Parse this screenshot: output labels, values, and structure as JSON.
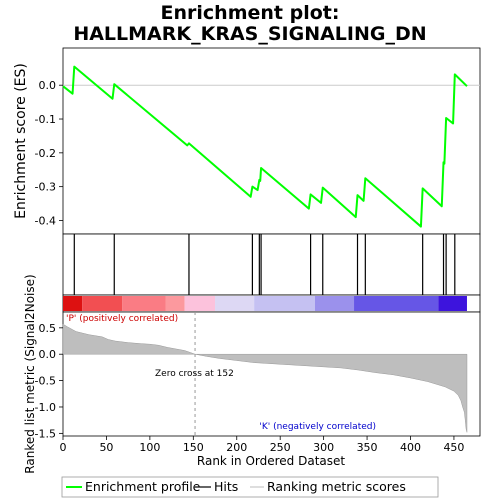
{
  "chart_data": {
    "type": "line",
    "title_line1": "Enrichment plot:",
    "title_line2": "HALLMARK_KRAS_SIGNALING_DN",
    "es_ylabel": "Enrichment score (ES)",
    "metric_ylabel": "Ranked list metric (Signal2Noise)",
    "xlabel": "Rank in Ordered Dataset",
    "pos_label": "'P' (positively correlated)",
    "neg_label": "'K' (negatively correlated)",
    "zero_cross_label": "Zero cross at 152",
    "zero_cross": 152,
    "legend": [
      "Enrichment profile",
      "Hits",
      "Ranking metric scores"
    ],
    "xlim": [
      0,
      480
    ],
    "es_ylim": [
      -0.44,
      0.11
    ],
    "metric_ylim": [
      -1.55,
      0.8
    ],
    "x_ticks": [
      0,
      50,
      100,
      150,
      200,
      250,
      300,
      350,
      400,
      450
    ],
    "es_ticks": [
      0.0,
      -0.1,
      -0.2,
      -0.3,
      -0.4
    ],
    "es_tick_labels": [
      "0.0",
      "-0.1",
      "-0.2",
      "-0.3",
      "-0.4"
    ],
    "metric_ticks": [
      0.5,
      0.0,
      -0.5,
      -1.0,
      -1.5
    ],
    "metric_tick_labels": [
      "0.5",
      "0.0",
      "-0.5",
      "-1.0",
      "-1.5"
    ],
    "n_genes": 465,
    "hits": [
      13,
      59,
      145,
      218,
      226,
      228,
      285,
      299,
      339,
      348,
      414,
      438,
      441,
      451
    ],
    "enrichment_profile": {
      "x": [
        0,
        11,
        13,
        57,
        59,
        143,
        145,
        216,
        218,
        224,
        226,
        227,
        228,
        283,
        285,
        297,
        299,
        337,
        339,
        346,
        348,
        412,
        414,
        436,
        438,
        439,
        441,
        449,
        451,
        465
      ],
      "y": [
        -0.003,
        -0.025,
        0.055,
        -0.04,
        0.003,
        -0.178,
        -0.172,
        -0.33,
        -0.3,
        -0.31,
        -0.28,
        -0.283,
        -0.245,
        -0.365,
        -0.323,
        -0.348,
        -0.303,
        -0.39,
        -0.325,
        -0.342,
        -0.275,
        -0.418,
        -0.305,
        -0.358,
        -0.228,
        -0.232,
        -0.097,
        -0.113,
        0.032,
        -0.003
      ]
    },
    "ranking_metric": {
      "rank": [
        0,
        5,
        15,
        30,
        45,
        52,
        60,
        75,
        90,
        100,
        110,
        120,
        130,
        140,
        147,
        152,
        165,
        180,
        200,
        220,
        240,
        260,
        280,
        300,
        320,
        340,
        360,
        380,
        400,
        420,
        440,
        450,
        455,
        458,
        460,
        462,
        463,
        464,
        465
      ],
      "value": [
        0.57,
        0.52,
        0.43,
        0.37,
        0.33,
        0.28,
        0.25,
        0.22,
        0.2,
        0.19,
        0.17,
        0.13,
        0.1,
        0.07,
        0.03,
        0.0,
        -0.04,
        -0.08,
        -0.12,
        -0.16,
        -0.18,
        -0.2,
        -0.22,
        -0.24,
        -0.26,
        -0.3,
        -0.35,
        -0.39,
        -0.45,
        -0.52,
        -0.62,
        -0.7,
        -0.78,
        -0.88,
        -1.0,
        -1.1,
        -1.25,
        -1.42,
        -1.48
      ]
    },
    "color_bands": [
      {
        "from": 0,
        "to": 22,
        "color": "#dd1111"
      },
      {
        "from": 22,
        "to": 68,
        "color": "#f24f52"
      },
      {
        "from": 68,
        "to": 118,
        "color": "#fa7c84"
      },
      {
        "from": 118,
        "to": 140,
        "color": "#fc999e"
      },
      {
        "from": 140,
        "to": 175,
        "color": "#fcc2dc"
      },
      {
        "from": 175,
        "to": 220,
        "color": "#ddd8f4"
      },
      {
        "from": 220,
        "to": 290,
        "color": "#c5c1f2"
      },
      {
        "from": 290,
        "to": 335,
        "color": "#9b91ec"
      },
      {
        "from": 335,
        "to": 432,
        "color": "#6656e6"
      },
      {
        "from": 432,
        "to": 465,
        "color": "#3d14dd"
      }
    ],
    "colors": {
      "enrichment": "#00ff00",
      "hits": "#000000",
      "metric_fill": "#bebebe",
      "zero_cross_line": "#999999",
      "zero_line": "#cccccc"
    }
  }
}
